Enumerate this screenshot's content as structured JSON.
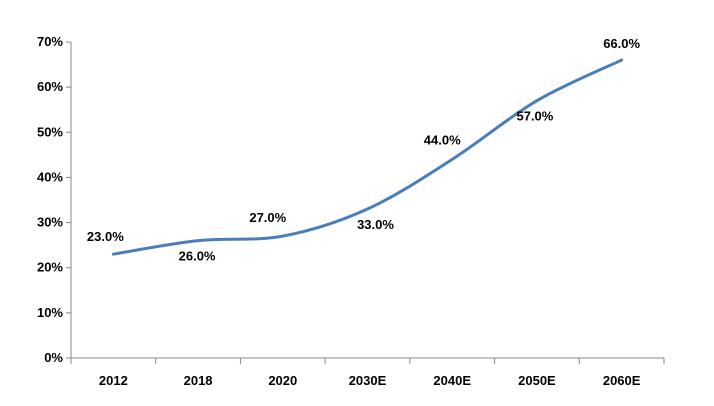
{
  "chart_data": {
    "type": "line",
    "categories": [
      "2012",
      "2018",
      "2020",
      "2030E",
      "2040E",
      "2050E",
      "2060E"
    ],
    "series": [
      {
        "values": [
          23.0,
          26.0,
          27.0,
          33.0,
          44.0,
          57.0,
          66.0
        ],
        "data_labels": [
          "23.0%",
          "26.0%",
          "27.0%",
          "33.0%",
          "44.0%",
          "57.0%",
          "66.0%"
        ]
      }
    ],
    "y_ticks": [
      "0%",
      "10%",
      "20%",
      "30%",
      "40%",
      "50%",
      "60%",
      "70%"
    ],
    "ylim": [
      0,
      70
    ],
    "grid": false,
    "smooth": true,
    "title": "",
    "xlabel": "",
    "ylabel": "",
    "colors": {
      "line": "#4a7ebb",
      "axis": "#888888",
      "text": "#000000"
    }
  }
}
